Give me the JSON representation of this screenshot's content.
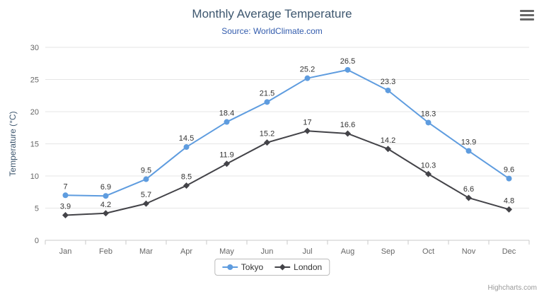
{
  "colors": {
    "title": "#3E576F",
    "subtitle": "#335CAD",
    "axis_label": "#666666",
    "axis_title": "#3E576F",
    "data_label": "#333333",
    "grid": "#e6e6e6",
    "axis_line": "#c9c9c9",
    "legend_text": "#333333",
    "credits": "#999999",
    "menu_icon": "#666666"
  },
  "credits": {
    "label": "Highcharts.com"
  },
  "menu": {
    "icon": "hamburger-icon"
  },
  "legend": {
    "items": [
      "Tokyo",
      "London"
    ]
  },
  "chart_data": {
    "type": "line",
    "title": "Monthly Average Temperature",
    "subtitle": "Source: WorldClimate.com",
    "categories": [
      "Jan",
      "Feb",
      "Mar",
      "Apr",
      "May",
      "Jun",
      "Jul",
      "Aug",
      "Sep",
      "Oct",
      "Nov",
      "Dec"
    ],
    "xlabel": "",
    "ylabel": "Temperature (°C)",
    "ylim": [
      0,
      30
    ],
    "ytick_interval": 5,
    "grid": "horizontal",
    "legend_position": "bottom",
    "series": [
      {
        "name": "Tokyo",
        "color": "#5e9cdf",
        "marker": "circle",
        "values": [
          7,
          6.9,
          9.5,
          14.5,
          18.4,
          21.5,
          25.2,
          26.5,
          23.3,
          18.3,
          13.9,
          9.6
        ],
        "labels": [
          "7",
          "6.9",
          "9.5",
          "14.5",
          "18.4",
          "21.5",
          "25.2",
          "26.5",
          "23.3",
          "18.3",
          "13.9",
          "9.6"
        ]
      },
      {
        "name": "London",
        "color": "#434348",
        "marker": "diamond",
        "values": [
          3.9,
          4.2,
          5.7,
          8.5,
          11.9,
          15.2,
          17,
          16.6,
          14.2,
          10.3,
          6.6,
          4.8
        ],
        "labels": [
          "3.9",
          "4.2",
          "5.7",
          "8.5",
          "11.9",
          "15.2",
          "17",
          "16.6",
          "14.2",
          "10.3",
          "6.6",
          "4.8"
        ]
      }
    ]
  }
}
